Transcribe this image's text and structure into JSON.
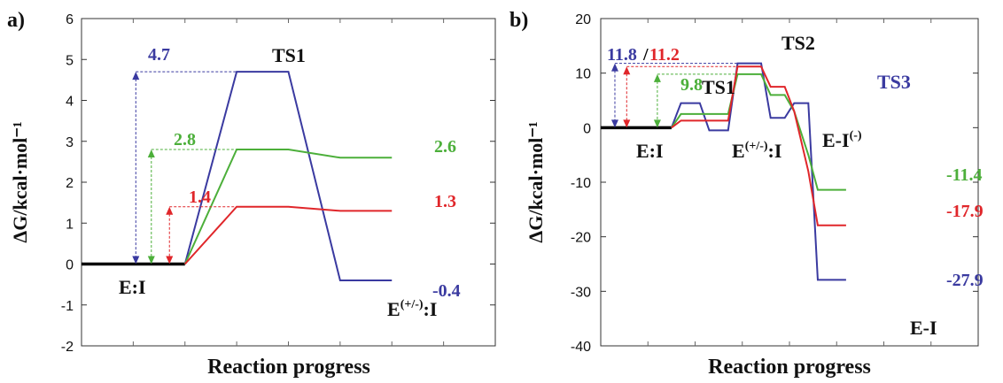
{
  "colors": {
    "blue": "#3a3aa0",
    "green": "#4caf3a",
    "red": "#e0262a",
    "black": "#000000"
  },
  "chart_data": [
    {
      "type": "line",
      "panel": "a)",
      "ylabel": "ΔG/kcal·mol⁻¹",
      "xlabel": "Reaction progress",
      "ylim": [
        -2,
        6
      ],
      "yticks": [
        -2,
        -1,
        0,
        1,
        2,
        3,
        4,
        5,
        6
      ],
      "xgrid_count": 8,
      "baseline": {
        "x": [
          0,
          2
        ],
        "y": 0,
        "label": "E:I"
      },
      "series": [
        {
          "color": "blue",
          "x": [
            2,
            3,
            4,
            5,
            6
          ],
          "y": [
            0,
            4.7,
            4.7,
            -0.4,
            -0.4
          ]
        },
        {
          "color": "green",
          "x": [
            2,
            3,
            4,
            5,
            6
          ],
          "y": [
            0,
            2.8,
            2.8,
            2.6,
            2.6
          ]
        },
        {
          "color": "red",
          "x": [
            2,
            3,
            4,
            5,
            6
          ],
          "y": [
            0,
            1.4,
            1.4,
            1.3,
            1.3
          ]
        }
      ],
      "state_labels": [
        {
          "text": "TS1",
          "x": 3.5,
          "y": 4.7
        },
        {
          "text": "E",
          "sup": "(+/-)",
          "tail": ":I",
          "x": 5.6,
          "y": -0.4
        }
      ],
      "value_labels": [
        {
          "text": "4.7",
          "color": "blue"
        },
        {
          "text": "2.8",
          "color": "green"
        },
        {
          "text": "1.4",
          "color": "red"
        },
        {
          "text": "2.6",
          "color": "green"
        },
        {
          "text": "1.3",
          "color": "red"
        },
        {
          "text": "-0.4",
          "color": "blue"
        }
      ]
    },
    {
      "type": "line",
      "panel": "b)",
      "ylabel": "ΔG/kcal·mol⁻¹",
      "xlabel": "Reaction progress",
      "ylim": [
        -40,
        20
      ],
      "yticks": [
        -40,
        -30,
        -20,
        -10,
        0,
        10,
        20
      ],
      "xgrid_count": 8,
      "baseline": {
        "x": [
          0,
          1.5
        ],
        "y": 0,
        "label": "E:I"
      },
      "series": [
        {
          "color": "blue",
          "x": [
            1.5,
            1.7,
            2.1,
            2.3,
            2.7,
            2.9,
            3.4,
            3.6,
            3.9,
            4.1,
            4.4,
            4.6,
            4.8,
            5.2
          ],
          "y": [
            0,
            4.5,
            4.5,
            -0.5,
            -0.5,
            11.8,
            11.8,
            1.8,
            1.8,
            4.5,
            4.5,
            -27.9,
            -27.9,
            -27.9
          ]
        },
        {
          "color": "green",
          "x": [
            1.5,
            1.7,
            2.7,
            2.9,
            3.4,
            3.6,
            3.9,
            4.1,
            4.4,
            4.6,
            5.2
          ],
          "y": [
            0,
            2.5,
            2.5,
            9.8,
            9.8,
            6.0,
            6.0,
            3.0,
            -5.0,
            -11.4,
            -11.4
          ]
        },
        {
          "color": "red",
          "x": [
            1.5,
            1.7,
            2.7,
            2.9,
            3.4,
            3.6,
            3.9,
            4.1,
            4.4,
            4.6,
            5.2
          ],
          "y": [
            0,
            1.3,
            1.3,
            11.2,
            11.2,
            7.5,
            7.5,
            3.0,
            -8.0,
            -17.9,
            -17.9
          ]
        }
      ],
      "state_labels": [
        {
          "text": "TS1",
          "x": 1.9,
          "y": 4.5
        },
        {
          "text": "TS2",
          "x": 3.15,
          "y": 11.8
        },
        {
          "text": "TS3",
          "x": 4.25,
          "y": 4.5
        },
        {
          "text": "E",
          "sup": "(+/-)",
          "tail": ":I",
          "x": 2.5,
          "y": -0.5
        },
        {
          "text": "E-I",
          "sup": "(-)",
          "tail": "",
          "x": 3.75,
          "y": 1.8
        },
        {
          "text": "E-I",
          "x": 4.9,
          "y": -27.9
        }
      ],
      "value_labels": [
        {
          "text": "11.8",
          "color": "blue"
        },
        {
          "text": "/",
          "color": "black"
        },
        {
          "text": "11.2",
          "color": "red"
        },
        {
          "text": "9.8",
          "color": "green"
        },
        {
          "text": "-11.4",
          "color": "green"
        },
        {
          "text": "-17.9",
          "color": "red"
        },
        {
          "text": "-27.9",
          "color": "blue"
        }
      ]
    }
  ]
}
